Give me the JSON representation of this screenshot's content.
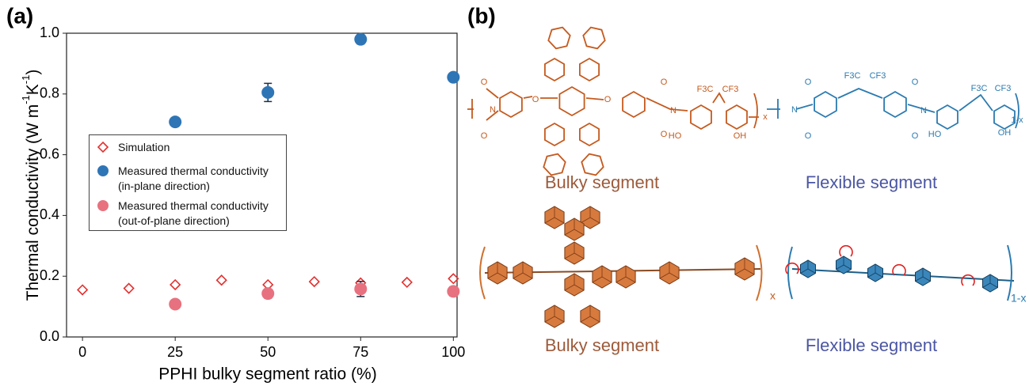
{
  "panel_a_label": "(a)",
  "panel_b_label": "(b)",
  "chart_data": {
    "type": "scatter",
    "x_label": "PPHI bulky segment ratio (%)",
    "y_label": [
      "Thermal conductivity (W m",
      "-1",
      "K",
      "-1",
      ")"
    ],
    "xlim": [
      -4.3,
      101
    ],
    "xticks": [
      0,
      25,
      50,
      75,
      100
    ],
    "ylim": [
      0,
      1.0
    ],
    "yticks": [
      {
        "value": 0,
        "label": "0.0"
      },
      {
        "value": 0.2,
        "label": "0.2"
      },
      {
        "value": 0.4,
        "label": "0.4"
      },
      {
        "value": 0.6,
        "label": "0.6"
      },
      {
        "value": 0.8,
        "label": "0.8"
      },
      {
        "value": 1.0,
        "label": "1.0"
      }
    ],
    "grid": false,
    "legend": "center left",
    "series": [
      {
        "name": "Simulation",
        "color": "#e2302f",
        "marker": "diamond",
        "x": [
          0,
          12.5,
          25,
          37.5,
          50,
          62.5,
          75,
          87.5,
          100
        ],
        "values": [
          0.155,
          0.16,
          0.172,
          0.187,
          0.172,
          0.182,
          0.178,
          0.18,
          0.192
        ]
      },
      {
        "name": "Measured thermal conductivity\n(in-plane direction)",
        "color": "#2e75b6",
        "marker": "circle",
        "x": [
          25,
          50,
          75,
          100
        ],
        "values": [
          0.708,
          0.805,
          0.98,
          0.855
        ],
        "errors": [
          0.008,
          0.03,
          0.015,
          0.005
        ]
      },
      {
        "name": "Measured thermal conductivity\n(out-of-plane direction)",
        "color": "#e8717f",
        "marker": "circle",
        "x": [
          25,
          50,
          75,
          100
        ],
        "values": [
          0.108,
          0.143,
          0.158,
          0.15
        ],
        "errors": [
          0.01,
          0.015,
          0.025,
          0.015
        ]
      }
    ]
  },
  "diagram": {
    "top_labels": [
      "Bulky segment",
      "Flexible segment"
    ],
    "bottom_labels": [
      "Bulky segment",
      "Flexible segment"
    ],
    "atoms": [
      "O",
      "O",
      "N",
      "O",
      "O",
      "O",
      "O",
      "N",
      "F3C",
      "CF3",
      "HO",
      "OH",
      "x",
      "O",
      "O",
      "N",
      "F3C",
      "CF3",
      "O",
      "O",
      "N",
      "HO",
      "F3C",
      "CF3",
      "OH",
      "1-x"
    ],
    "bottom_subscripts": [
      "x",
      "1-x"
    ]
  }
}
